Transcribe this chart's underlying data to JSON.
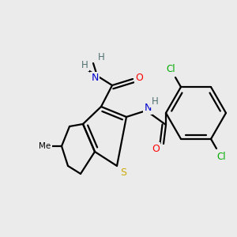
{
  "background_color": "#ebebeb",
  "atom_colors": {
    "C": "#000000",
    "N": "#0000cd",
    "O": "#ff0000",
    "S": "#ccaa00",
    "Cl": "#00aa00",
    "H": "#507070"
  },
  "line_color": "#000000",
  "lw": 1.6,
  "figsize": [
    3.0,
    3.0
  ],
  "dpi": 100
}
